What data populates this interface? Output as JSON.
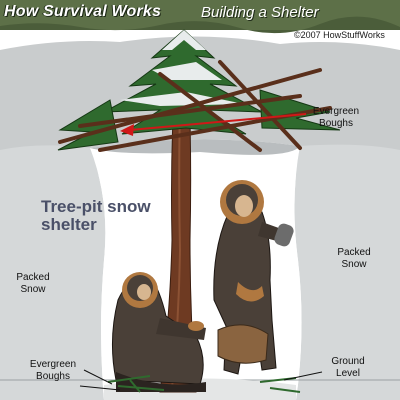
{
  "header": {
    "brand": "How Survival Works",
    "subtitle": "Building a Shelter",
    "copyright": "©2007 HowStuffWorks"
  },
  "diagram": {
    "title": "Tree-pit snow shelter",
    "labels": {
      "evergreen_boughs_top": "Evergreen Boughs",
      "packed_snow_left": "Packed Snow",
      "packed_snow_right": "Packed Snow",
      "evergreen_boughs_bottom": "Evergreen Boughs",
      "ground_level": "Ground Level"
    }
  },
  "colors": {
    "header_bg": "#5d7048",
    "snow": "#d6dada",
    "pit": "#ffffff",
    "trunk": "#6e3a22",
    "needles": "#2f6a2e",
    "arrow": "#d01818",
    "parka": "#4a4038",
    "fur": "#b07840"
  }
}
